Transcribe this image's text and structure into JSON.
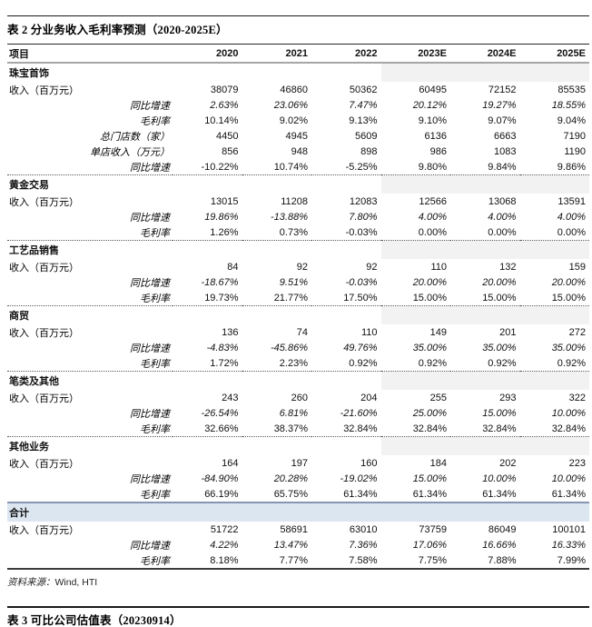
{
  "title": "表 2 分业务收入毛利率预测（2020-2025E）",
  "columns": {
    "item": "项目",
    "years": [
      "2020",
      "2021",
      "2022",
      "2023E",
      "2024E",
      "2025E"
    ]
  },
  "sections": [
    {
      "name": "珠宝首饰",
      "highlight": false,
      "rows": [
        {
          "label": "收入（百万元）",
          "type": "main",
          "values_italic": false,
          "values": [
            "38079",
            "46860",
            "50362",
            "60495",
            "72152",
            "85535"
          ]
        },
        {
          "label": "同比增速",
          "type": "sub",
          "values_italic": true,
          "values": [
            "2.63%",
            "23.06%",
            "7.47%",
            "20.12%",
            "19.27%",
            "18.55%"
          ]
        },
        {
          "label": "毛利率",
          "type": "sub",
          "values_italic": false,
          "values": [
            "10.14%",
            "9.02%",
            "9.13%",
            "9.10%",
            "9.07%",
            "9.04%"
          ]
        },
        {
          "label": "总门店数（家）",
          "type": "sub",
          "values_italic": false,
          "values": [
            "4450",
            "4945",
            "5609",
            "6136",
            "6663",
            "7190"
          ]
        },
        {
          "label": "单店收入（万元）",
          "type": "sub",
          "values_italic": false,
          "values": [
            "856",
            "948",
            "898",
            "986",
            "1083",
            "1190"
          ]
        },
        {
          "label": "同比增速",
          "type": "sub",
          "values_italic": false,
          "values": [
            "-10.22%",
            "10.74%",
            "-5.25%",
            "9.80%",
            "9.84%",
            "9.86%"
          ]
        }
      ]
    },
    {
      "name": "黄金交易",
      "highlight": false,
      "rows": [
        {
          "label": "收入（百万元）",
          "type": "main",
          "values_italic": false,
          "values": [
            "13015",
            "11208",
            "12083",
            "12566",
            "13068",
            "13591"
          ]
        },
        {
          "label": "同比增速",
          "type": "sub",
          "values_italic": true,
          "values": [
            "19.86%",
            "-13.88%",
            "7.80%",
            "4.00%",
            "4.00%",
            "4.00%"
          ]
        },
        {
          "label": "毛利率",
          "type": "sub",
          "values_italic": false,
          "values": [
            "1.26%",
            "0.73%",
            "-0.03%",
            "0.00%",
            "0.00%",
            "0.00%"
          ]
        }
      ]
    },
    {
      "name": "工艺品销售",
      "highlight": false,
      "rows": [
        {
          "label": "收入（百万元）",
          "type": "main",
          "values_italic": false,
          "values": [
            "84",
            "92",
            "92",
            "110",
            "132",
            "159"
          ]
        },
        {
          "label": "同比增速",
          "type": "sub",
          "values_italic": true,
          "values": [
            "-18.67%",
            "9.51%",
            "-0.03%",
            "20.00%",
            "20.00%",
            "20.00%"
          ]
        },
        {
          "label": "毛利率",
          "type": "sub",
          "values_italic": false,
          "values": [
            "19.73%",
            "21.77%",
            "17.50%",
            "15.00%",
            "15.00%",
            "15.00%"
          ]
        }
      ]
    },
    {
      "name": "商贸",
      "highlight": false,
      "rows": [
        {
          "label": "收入（百万元）",
          "type": "main",
          "values_italic": false,
          "values": [
            "136",
            "74",
            "110",
            "149",
            "201",
            "272"
          ]
        },
        {
          "label": "同比增速",
          "type": "sub",
          "values_italic": true,
          "values": [
            "-4.83%",
            "-45.86%",
            "49.76%",
            "35.00%",
            "35.00%",
            "35.00%"
          ]
        },
        {
          "label": "毛利率",
          "type": "sub",
          "values_italic": false,
          "values": [
            "1.72%",
            "2.23%",
            "0.92%",
            "0.92%",
            "0.92%",
            "0.92%"
          ]
        }
      ]
    },
    {
      "name": "笔类及其他",
      "highlight": false,
      "rows": [
        {
          "label": "收入（百万元）",
          "type": "main",
          "values_italic": false,
          "values": [
            "243",
            "260",
            "204",
            "255",
            "293",
            "322"
          ]
        },
        {
          "label": "同比增速",
          "type": "sub",
          "values_italic": true,
          "values": [
            "-26.54%",
            "6.81%",
            "-21.60%",
            "25.00%",
            "15.00%",
            "10.00%"
          ]
        },
        {
          "label": "毛利率",
          "type": "sub",
          "values_italic": false,
          "values": [
            "32.66%",
            "38.37%",
            "32.84%",
            "32.84%",
            "32.84%",
            "32.84%"
          ]
        }
      ]
    },
    {
      "name": "其他业务",
      "highlight": false,
      "rows": [
        {
          "label": "收入（百万元）",
          "type": "main",
          "values_italic": false,
          "values": [
            "164",
            "197",
            "160",
            "184",
            "202",
            "223"
          ]
        },
        {
          "label": "同比增速",
          "type": "sub",
          "values_italic": true,
          "values": [
            "-84.90%",
            "20.28%",
            "-19.02%",
            "15.00%",
            "10.00%",
            "10.00%"
          ]
        },
        {
          "label": "毛利率",
          "type": "sub",
          "values_italic": false,
          "values": [
            "66.19%",
            "65.75%",
            "61.34%",
            "61.34%",
            "61.34%",
            "61.34%"
          ]
        }
      ]
    },
    {
      "name": "合计",
      "highlight": true,
      "rows": [
        {
          "label": "收入（百万元）",
          "type": "main",
          "values_italic": false,
          "values": [
            "51722",
            "58691",
            "63010",
            "73759",
            "86049",
            "100101"
          ]
        },
        {
          "label": "同比增速",
          "type": "sub",
          "values_italic": true,
          "values": [
            "4.22%",
            "13.47%",
            "7.36%",
            "17.06%",
            "16.66%",
            "16.33%"
          ]
        },
        {
          "label": "毛利率",
          "type": "sub",
          "values_italic": false,
          "values": [
            "8.18%",
            "7.77%",
            "7.58%",
            "7.75%",
            "7.88%",
            "7.99%"
          ]
        }
      ]
    }
  ],
  "source": {
    "label": "资料来源：",
    "value": "Wind, HTI"
  },
  "next_table": {
    "title": "表 3 可比公司估值表（20230914）"
  },
  "colors": {
    "section_shade": "#f2f2f2",
    "total_fill": "#dce6f1",
    "total_border": "#8496b0",
    "header_underline": "#a6a6a6",
    "dotted_line": "#5a5a5a"
  }
}
